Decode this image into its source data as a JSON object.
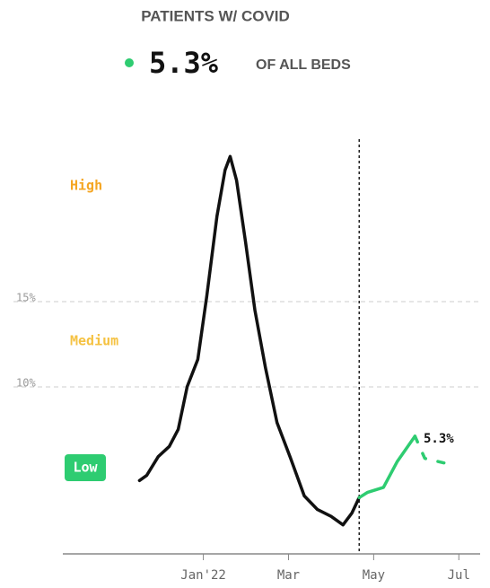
{
  "chart_data": {
    "type": "line",
    "title": "PATIENTS W/ COVID",
    "headline_value": "5.3%",
    "headline_text": "OF ALL BEDS",
    "headline_color": "#2ecc71",
    "levels": [
      {
        "label": "High",
        "color": "#f5a623"
      },
      {
        "label": "Medium",
        "color": "#f5c242"
      },
      {
        "label": "Low",
        "color": "#2ecc71"
      }
    ],
    "end_label": "5.3%",
    "marker_x": 3.66,
    "xlim": [
      -3.3,
      6.5
    ],
    "xticks": [
      {
        "value": 0,
        "label": "Jan'22"
      },
      {
        "value": 2,
        "label": "Mar"
      },
      {
        "value": 4,
        "label": "May"
      },
      {
        "value": 6,
        "label": "Jul"
      }
    ],
    "ylim": [
      0,
      25
    ],
    "yticks": [
      {
        "value": 15,
        "label": "15%"
      },
      {
        "value": 10,
        "label": "10%"
      }
    ],
    "grid": true,
    "series": [
      {
        "color": "#111111",
        "dashed": false,
        "x": [
          -1.5,
          -1.33,
          -1.06,
          -0.8,
          -0.59,
          -0.38,
          -0.13,
          0.08,
          0.32,
          0.51,
          0.63,
          0.78,
          0.99,
          1.21,
          1.46,
          1.73,
          2.05,
          2.37,
          2.68,
          3.0,
          3.28,
          3.49,
          3.66
        ],
        "values": [
          4.3,
          4.6,
          5.7,
          6.3,
          7.3,
          9.8,
          11.4,
          15.1,
          19.8,
          22.5,
          23.3,
          21.9,
          18.3,
          14.3,
          10.9,
          7.7,
          5.6,
          3.4,
          2.6,
          2.2,
          1.7,
          2.4,
          3.3
        ]
      },
      {
        "color": "#2ecc71",
        "dashed": false,
        "x": [
          3.66,
          3.85,
          4.23,
          4.55,
          4.97
        ],
        "values": [
          3.3,
          3.6,
          3.9,
          5.4,
          6.9
        ]
      },
      {
        "color": "#2ecc71",
        "dashed": true,
        "x": [
          4.97,
          5.2,
          5.71
        ],
        "values": [
          6.9,
          5.6,
          5.3
        ]
      }
    ]
  }
}
